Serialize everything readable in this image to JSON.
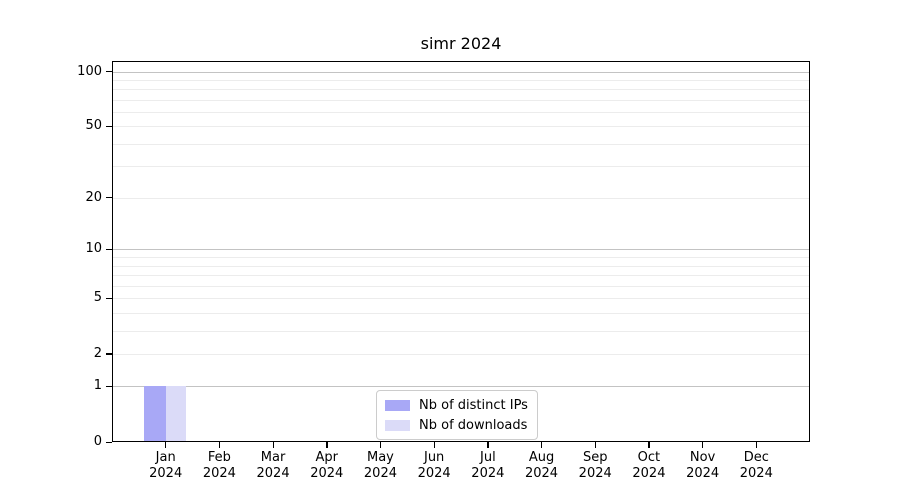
{
  "chart_data": {
    "type": "bar",
    "title": "simr 2024",
    "year_label": "2024",
    "categories": [
      "Jan",
      "Feb",
      "Mar",
      "Apr",
      "May",
      "Jun",
      "Jul",
      "Aug",
      "Sep",
      "Oct",
      "Nov",
      "Dec"
    ],
    "series": [
      {
        "name": "Nb of distinct IPs",
        "color": "#a8a8f6",
        "values": [
          1,
          0,
          0,
          0,
          0,
          0,
          0,
          0,
          0,
          0,
          0,
          0
        ]
      },
      {
        "name": "Nb of downloads",
        "color": "#dbdbf8",
        "values": [
          1,
          0,
          0,
          0,
          0,
          0,
          0,
          0,
          0,
          0,
          0,
          0
        ]
      }
    ],
    "yscale": "log1p",
    "ylim": [
      0,
      113
    ],
    "yticks": [
      0,
      1,
      2,
      5,
      10,
      20,
      50,
      100
    ],
    "grid_major_values": [
      1,
      10,
      100
    ],
    "grid_minor_values": [
      2,
      3,
      4,
      5,
      6,
      7,
      8,
      9,
      20,
      30,
      40,
      50,
      60,
      70,
      80,
      90
    ],
    "grid": "horizontal",
    "legend_position": "lower center",
    "colors": {
      "major_grid": "#c3c3c3",
      "minor_grid": "#ececec",
      "spine": "#000000",
      "text": "#000000",
      "background": "#ffffff"
    }
  }
}
